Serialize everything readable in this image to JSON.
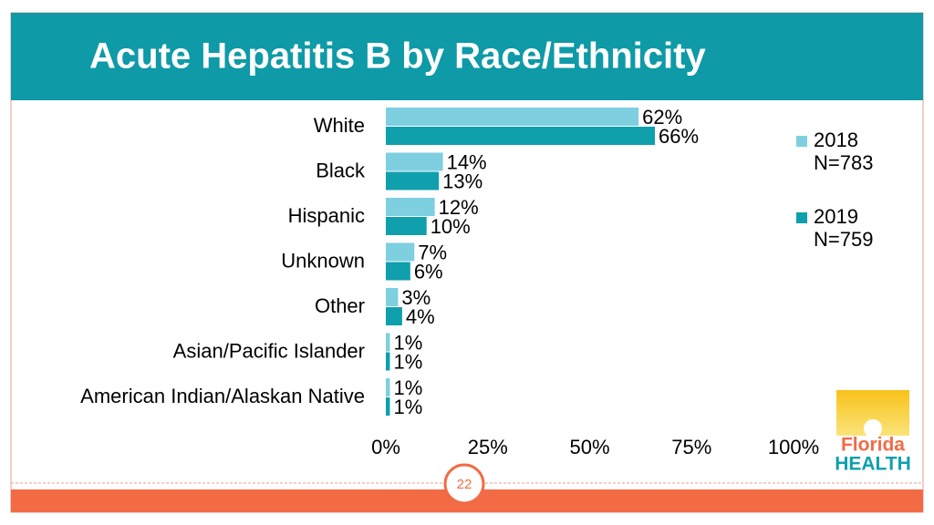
{
  "chart_data": {
    "type": "bar",
    "orientation": "horizontal",
    "title": "Acute Hepatitis B by Race/Ethnicity",
    "categories": [
      "White",
      "Black",
      "Hispanic",
      "Unknown",
      "Other",
      "Asian/Pacific Islander",
      "American Indian/Alaskan Native"
    ],
    "series": [
      {
        "name": "2018",
        "note": "N=783",
        "color": "#7ecfdf",
        "values": [
          62,
          14,
          12,
          7,
          3,
          1,
          1
        ],
        "value_labels": [
          "62%",
          "14%",
          "12%",
          "7%",
          "3%",
          "1%",
          "1%"
        ]
      },
      {
        "name": "2019",
        "note": "N=759",
        "color": "#0f9fad",
        "values": [
          66,
          13,
          10,
          6,
          4,
          1,
          1
        ],
        "value_labels": [
          "66%",
          "13%",
          "10%",
          "6%",
          "4%",
          "1%",
          "1%"
        ]
      }
    ],
    "xlim": [
      0,
      100
    ],
    "xticks": [
      {
        "value": 0,
        "label": "0%"
      },
      {
        "value": 25,
        "label": "25%"
      },
      {
        "value": 50,
        "label": "50%"
      },
      {
        "value": 75,
        "label": "75%"
      },
      {
        "value": 100,
        "label": "100%"
      }
    ],
    "legend": "right"
  },
  "page_number": "22",
  "logo": {
    "line1": "Florida",
    "line2": "HEALTH"
  }
}
